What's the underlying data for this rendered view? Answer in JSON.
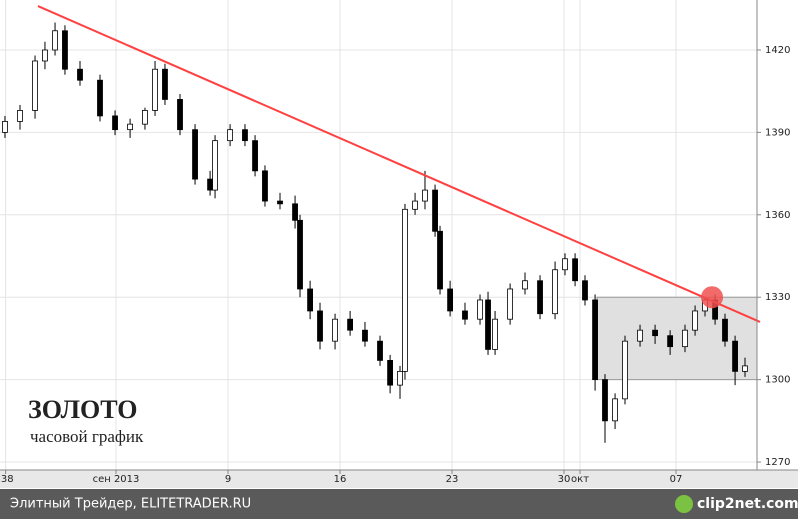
{
  "chart_data": {
    "type": "candlestick",
    "title": "ЗОЛОТО",
    "subtitle": "часовой график",
    "x": [
      -4.94,
      -4.0,
      -3.06,
      -2.44,
      -1.81,
      -1.19,
      -0.25,
      1.0,
      1.94,
      2.88,
      3.81,
      4.44,
      5.06,
      6.0,
      6.94,
      7.88,
      8.19,
      9.13,
      10.06,
      10.69,
      11.31,
      12.25,
      13.19,
      13.5,
      14.13,
      14.75,
      15.69,
      16.63,
      17.56,
      18.5,
      19.13,
      19.75,
      20.06,
      20.69,
      21.31,
      21.94,
      22.25,
      22.88,
      23.81,
      24.75,
      25.25,
      25.69,
      26.63,
      27.56,
      28.5,
      29.44,
      30.06,
      30.69,
      31.31,
      31.94,
      32.56,
      33.19,
      33.81,
      34.75,
      35.69,
      36.63,
      37.56,
      38.19,
      38.81,
      39.44,
      40.06,
      40.69,
      41.31
    ],
    "open": [
      1390,
      1394,
      1398,
      1416,
      1420,
      1427,
      1413,
      1409,
      1396,
      1391,
      1393,
      1398,
      1413,
      1402,
      1391,
      1373,
      1369,
      1387,
      1391,
      1387,
      1376,
      1365,
      1364,
      1358,
      1333,
      1325,
      1314,
      1322,
      1318,
      1314,
      1307,
      1298,
      1303,
      1362,
      1365,
      1369,
      1354,
      1333,
      1325,
      1322,
      1329,
      1311,
      1322,
      1333,
      1336,
      1324,
      1340,
      1344,
      1336,
      1329,
      1300,
      1285,
      1293,
      1314,
      1318,
      1316,
      1312,
      1318,
      1325,
      1329,
      1322,
      1314,
      1303
    ],
    "high": [
      1396,
      1400,
      1418,
      1423,
      1430,
      1429,
      1416,
      1411,
      1398,
      1395,
      1399,
      1416,
      1415,
      1404,
      1393,
      1376,
      1389,
      1393,
      1393,
      1389,
      1378,
      1368,
      1367,
      1360,
      1336,
      1328,
      1324,
      1325,
      1321,
      1316,
      1309,
      1305,
      1364,
      1368,
      1376,
      1371,
      1356,
      1336,
      1328,
      1331,
      1332,
      1325,
      1335,
      1339,
      1338,
      1343,
      1346,
      1346,
      1338,
      1331,
      1302,
      1295,
      1316,
      1320,
      1320,
      1318,
      1320,
      1327,
      1330,
      1331,
      1324,
      1316,
      1308
    ],
    "low": [
      1388,
      1391,
      1395,
      1413,
      1418,
      1411,
      1407,
      1394,
      1389,
      1388,
      1391,
      1396,
      1400,
      1389,
      1371,
      1367,
      1366,
      1385,
      1385,
      1374,
      1363,
      1362,
      1355,
      1330,
      1322,
      1311,
      1311,
      1316,
      1312,
      1305,
      1295,
      1293,
      1300,
      1360,
      1362,
      1352,
      1331,
      1323,
      1320,
      1320,
      1309,
      1309,
      1320,
      1331,
      1322,
      1322,
      1338,
      1334,
      1327,
      1296,
      1277,
      1282,
      1291,
      1312,
      1313,
      1309,
      1310,
      1316,
      1323,
      1320,
      1312,
      1298,
      1301
    ],
    "close": [
      1394,
      1398,
      1416,
      1420,
      1427,
      1413,
      1409,
      1396,
      1391,
      1393,
      1398,
      1413,
      1402,
      1391,
      1373,
      1369,
      1387,
      1391,
      1387,
      1376,
      1365,
      1364,
      1358,
      1333,
      1325,
      1314,
      1322,
      1318,
      1314,
      1307,
      1298,
      1303,
      1362,
      1365,
      1369,
      1354,
      1333,
      1325,
      1322,
      1329,
      1311,
      1322,
      1333,
      1336,
      1324,
      1340,
      1344,
      1336,
      1329,
      1300,
      1285,
      1293,
      1314,
      1318,
      1316,
      1312,
      1318,
      1325,
      1329,
      1322,
      1314,
      1303,
      1305
    ],
    "color": "#000000",
    "xlim": [
      -5.25,
      42.06
    ],
    "xticks": [
      {
        "value": -4.9,
        "label": ":38"
      },
      {
        "value": 2,
        "label": "сен 2013"
      },
      9,
      16,
      23,
      30,
      {
        "value": 31,
        "label": "окт"
      },
      {
        "value": 37,
        "label": "07"
      }
    ],
    "ylim": [
      1267.1,
      1438.2
    ],
    "yticks": [
      1270,
      1300,
      1330,
      1360,
      1390,
      1420
    ],
    "grid": true,
    "trendline": {
      "x": [
        -2.88,
        42.25
      ],
      "y": [
        1436,
        1321
      ],
      "color": "#ff4040"
    },
    "range_box": {
      "x": [
        32.06,
        42.06
      ],
      "y": [
        1300,
        1330
      ],
      "color": "#e0e0e0"
    },
    "marker": {
      "x": 39.25,
      "y": 1330,
      "color": "#f05050"
    }
  },
  "footer": {
    "source": "Элитный Трейдер, ELITETRADER.RU",
    "logo": "clip2net.com"
  }
}
